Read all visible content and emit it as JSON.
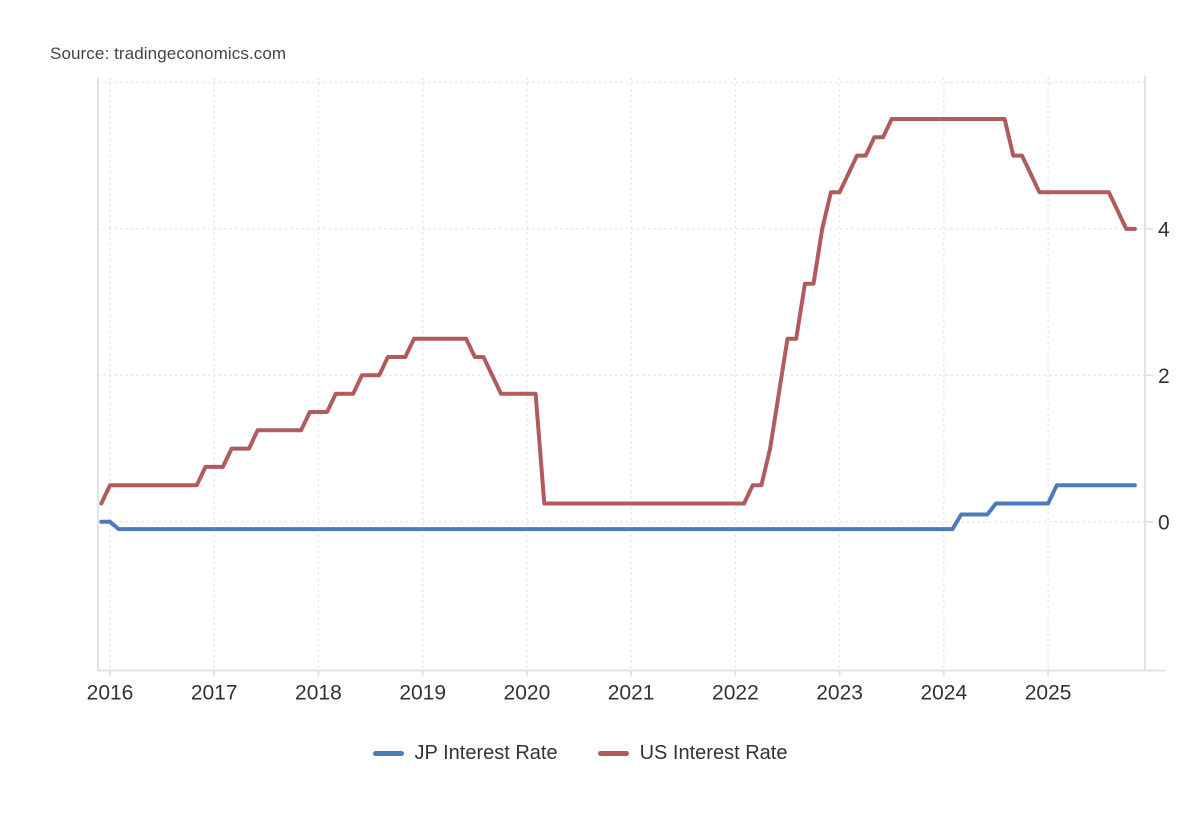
{
  "source_text": "Source: tradingeconomics.com",
  "colors": {
    "background": "#ffffff",
    "axis": "#e0e0e0",
    "grid": "#e3e3e3",
    "tick_label": "#333333",
    "legend_label": "#333333",
    "source_text": "#444444",
    "jp_line": "#4a7cb8",
    "us_line": "#b05c5c"
  },
  "chart_data": {
    "type": "line",
    "title": "",
    "xlabel": "",
    "ylabel": "",
    "grid_style": "dotted",
    "legend_position": "bottom",
    "x_axis": {
      "tick_labels": [
        "2016",
        "2017",
        "2018",
        "2019",
        "2020",
        "2021",
        "2022",
        "2023",
        "2024",
        "2025"
      ],
      "tick_values": [
        2016,
        2017,
        2018,
        2019,
        2020,
        2021,
        2022,
        2023,
        2024,
        2025
      ],
      "range": [
        2015.885,
        2025.93
      ],
      "data_start": 2015.9167,
      "data_end": 2025.8333
    },
    "y_axis": {
      "side": "right",
      "tick_labels": [
        "0",
        "2",
        "4"
      ],
      "tick_values": [
        0,
        2,
        4
      ],
      "grid_values": [
        0,
        2,
        4,
        6
      ],
      "range": [
        -2.03,
        6.06
      ]
    },
    "series": [
      {
        "name": "JP Interest Rate",
        "color": "#4a7cb8",
        "unit": "%",
        "breakpoints": [
          [
            2015.9167,
            0.0
          ],
          [
            2016.0833,
            -0.1
          ],
          [
            2024.1667,
            0.1
          ],
          [
            2024.5,
            0.25
          ],
          [
            2025.0833,
            0.5
          ]
        ]
      },
      {
        "name": "US Interest Rate",
        "color": "#b05c5c",
        "unit": "%",
        "breakpoints": [
          [
            2015.9167,
            0.25
          ],
          [
            2016.0,
            0.5
          ],
          [
            2016.9167,
            0.75
          ],
          [
            2017.1667,
            1.0
          ],
          [
            2017.4167,
            1.25
          ],
          [
            2017.9167,
            1.5
          ],
          [
            2018.1667,
            1.75
          ],
          [
            2018.4167,
            2.0
          ],
          [
            2018.6667,
            2.25
          ],
          [
            2018.9167,
            2.5
          ],
          [
            2019.5,
            2.25
          ],
          [
            2019.6667,
            2.0
          ],
          [
            2019.75,
            1.75
          ],
          [
            2020.1667,
            0.25
          ],
          [
            2022.1667,
            0.5
          ],
          [
            2022.3333,
            1.0
          ],
          [
            2022.4167,
            1.75
          ],
          [
            2022.5,
            2.5
          ],
          [
            2022.6667,
            3.25
          ],
          [
            2022.8333,
            4.0
          ],
          [
            2022.9167,
            4.5
          ],
          [
            2023.0833,
            4.75
          ],
          [
            2023.1667,
            5.0
          ],
          [
            2023.3333,
            5.25
          ],
          [
            2023.5,
            5.5
          ],
          [
            2024.6667,
            5.0
          ],
          [
            2024.8333,
            4.75
          ],
          [
            2024.9167,
            4.5
          ],
          [
            2025.6667,
            4.25
          ],
          [
            2025.75,
            4.0
          ]
        ]
      }
    ]
  }
}
